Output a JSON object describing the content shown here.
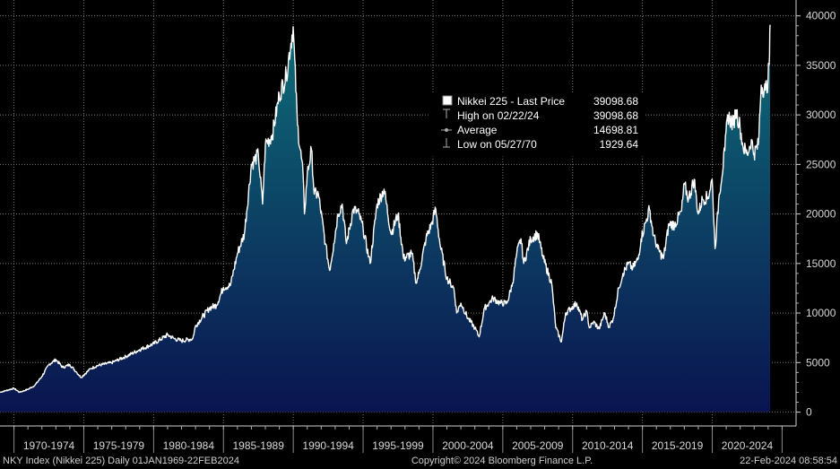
{
  "chart_data": {
    "type": "area",
    "title": "Nikkei 225",
    "ylim": [
      -1400,
      41600
    ],
    "yticks": [
      0,
      5000,
      10000,
      15000,
      20000,
      25000,
      30000,
      35000,
      40000
    ],
    "ytick_labels": [
      "0",
      "5000",
      "10000",
      "15000",
      "20000",
      "25000",
      "30000",
      "35000",
      "40000"
    ],
    "xlim": [
      1969.0,
      2026.0
    ],
    "x_groups": [
      {
        "label": "1970-1974",
        "start": 1970,
        "end": 1975
      },
      {
        "label": "1975-1979",
        "start": 1975,
        "end": 1980
      },
      {
        "label": "1980-1984",
        "start": 1980,
        "end": 1985
      },
      {
        "label": "1985-1989",
        "start": 1985,
        "end": 1990
      },
      {
        "label": "1990-1994",
        "start": 1990,
        "end": 1995
      },
      {
        "label": "1995-1999",
        "start": 1995,
        "end": 2000
      },
      {
        "label": "2000-2004",
        "start": 2000,
        "end": 2005
      },
      {
        "label": "2005-2009",
        "start": 2005,
        "end": 2010
      },
      {
        "label": "2010-2014",
        "start": 2010,
        "end": 2015
      },
      {
        "label": "2015-2019",
        "start": 2015,
        "end": 2020
      },
      {
        "label": "2020-2024",
        "start": 2020,
        "end": 2025
      }
    ],
    "series": [
      {
        "name": "Nikkei 225 - Last Price",
        "x": [
          1969.0,
          1970.0,
          1970.4,
          1971.0,
          1971.5,
          1972.0,
          1972.5,
          1973.0,
          1973.5,
          1974.0,
          1974.5,
          1974.8,
          1975.5,
          1976.0,
          1977.0,
          1978.0,
          1979.0,
          1980.0,
          1981.0,
          1981.5,
          1982.0,
          1982.8,
          1983.0,
          1984.0,
          1984.5,
          1985.0,
          1985.5,
          1986.0,
          1986.5,
          1987.0,
          1987.5,
          1987.8,
          1988.0,
          1988.5,
          1989.0,
          1989.5,
          1989.99,
          1990.3,
          1990.7,
          1990.8,
          1991.0,
          1991.3,
          1991.5,
          1991.8,
          1992.3,
          1992.6,
          1992.9,
          1993.2,
          1993.5,
          1993.8,
          1994.3,
          1994.7,
          1995.0,
          1995.5,
          1996.0,
          1996.5,
          1997.0,
          1997.5,
          1997.9,
          1998.5,
          1998.8,
          1999.0,
          1999.5,
          1999.9,
          2000.2,
          2000.5,
          2001.0,
          2001.5,
          2001.7,
          2002.0,
          2002.5,
          2003.0,
          2003.3,
          2003.7,
          2004.0,
          2004.3,
          2004.8,
          2005.3,
          2005.7,
          2006.0,
          2006.3,
          2006.5,
          2007.0,
          2007.5,
          2007.9,
          2008.5,
          2008.8,
          2009.2,
          2009.5,
          2009.9,
          2010.3,
          2010.7,
          2011.0,
          2011.2,
          2011.5,
          2011.9,
          2012.3,
          2012.6,
          2012.9,
          2013.3,
          2013.6,
          2014.0,
          2014.3,
          2014.7,
          2014.9,
          2015.3,
          2015.5,
          2015.8,
          2016.1,
          2016.5,
          2016.9,
          2017.3,
          2017.8,
          2018.0,
          2018.3,
          2018.7,
          2018.99,
          2019.3,
          2019.7,
          2019.99,
          2020.2,
          2020.5,
          2020.9,
          2021.1,
          2021.5,
          2021.7,
          2021.99,
          2022.2,
          2022.5,
          2022.8,
          2022.99,
          2023.3,
          2023.5,
          2023.8,
          2023.99,
          2024.05,
          2024.1,
          2024.14
        ],
        "values": [
          2000,
          2400,
          2000,
          2300,
          2700,
          3600,
          4800,
          5300,
          4500,
          4800,
          4000,
          3500,
          4400,
          4700,
          5000,
          5600,
          6300,
          6900,
          7800,
          7400,
          7200,
          7400,
          8700,
          10500,
          10800,
          12600,
          12800,
          16000,
          18000,
          25000,
          26000,
          21000,
          27000,
          28000,
          32000,
          34000,
          38900,
          29000,
          24000,
          20000,
          24000,
          26500,
          22000,
          22000,
          17000,
          14300,
          17000,
          20000,
          21000,
          17000,
          20500,
          20000,
          18500,
          15000,
          21000,
          22500,
          18000,
          20000,
          15500,
          16000,
          13000,
          14000,
          17500,
          19000,
          20500,
          17000,
          13500,
          12500,
          10000,
          11000,
          9500,
          8500,
          7600,
          10500,
          11000,
          11500,
          11000,
          11000,
          13000,
          16000,
          17500,
          15000,
          17500,
          18000,
          15500,
          13000,
          8500,
          7100,
          10000,
          10500,
          11000,
          9300,
          10200,
          8500,
          9100,
          8400,
          10000,
          8600,
          9400,
          12500,
          14000,
          15000,
          14500,
          15500,
          17500,
          19500,
          20500,
          17800,
          16500,
          15500,
          19000,
          18900,
          20300,
          23000,
          21500,
          23500,
          20000,
          21500,
          21700,
          23500,
          16500,
          22000,
          26400,
          30000,
          29000,
          30500,
          28800,
          26800,
          26000,
          27500,
          26100,
          27000,
          33000,
          32500,
          33400,
          35000,
          36000,
          39098.68
        ]
      }
    ],
    "legend": {
      "name": "Nikkei 225 - Last Price",
      "last_price": "39098.68",
      "high_label": "High on 02/22/24",
      "high_value": "39098.68",
      "avg_label": "Average",
      "avg_value": "14698.81",
      "low_label": "Low on 05/27/70",
      "low_value": "1929.64"
    },
    "footer": {
      "left": "NKY Index (Nikkei 225)  Daily 01JAN1969-22FEB2024",
      "center": "Copyright© 2024 Bloomberg Finance L.P.",
      "right": "22-Feb-2024 08:58:54"
    },
    "colors": {
      "background": "#000000",
      "line": "#ffffff",
      "fill_top": "#0e6e78",
      "fill_bottom": "#0a1450",
      "grid": "#7a7a7a",
      "text": "#d8d8d8",
      "legend_bg": "#000000"
    }
  }
}
